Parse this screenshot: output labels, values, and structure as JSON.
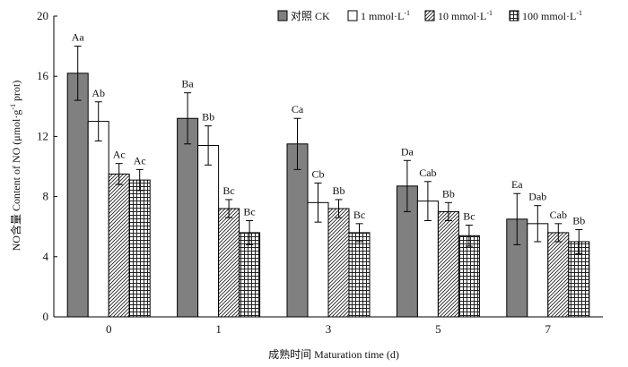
{
  "chart_data": {
    "type": "bar",
    "categories": [
      "0",
      "1",
      "3",
      "5",
      "7"
    ],
    "xlabel": "成熟时间 Maturation time (d)",
    "ylabel_prefix": "NO含量 Content of NO (μmol·g",
    "ylabel_sup": "-1",
    "ylabel_suffix": " prot)",
    "ylim": [
      0,
      20
    ],
    "yticks": [
      0,
      4,
      8,
      12,
      16,
      20
    ],
    "grid": false,
    "legend_position": "top-right",
    "series": [
      {
        "name": "对照 CK",
        "name_sup": "",
        "pattern": "gray",
        "values": [
          16.2,
          13.2,
          11.5,
          8.7,
          6.5
        ],
        "errors": [
          1.8,
          1.7,
          1.7,
          1.7,
          1.7
        ],
        "labels": [
          "Aa",
          "Ba",
          "Ca",
          "Da",
          "Ea"
        ]
      },
      {
        "name": "1 mmol·L",
        "name_sup": "-1",
        "pattern": "white",
        "values": [
          13.0,
          11.4,
          7.6,
          7.7,
          6.2
        ],
        "errors": [
          1.3,
          1.3,
          1.3,
          1.3,
          1.2
        ],
        "labels": [
          "Ab",
          "Bb",
          "Cb",
          "Cab",
          "Dab"
        ]
      },
      {
        "name": "10 mmol·L",
        "name_sup": "-1",
        "pattern": "hatch",
        "values": [
          9.5,
          7.2,
          7.2,
          7.0,
          5.6
        ],
        "errors": [
          0.7,
          0.6,
          0.6,
          0.6,
          0.6
        ],
        "labels": [
          "Ac",
          "Bc",
          "Bb",
          "Bb",
          "Cab"
        ]
      },
      {
        "name": "100 mmol·L",
        "name_sup": "-1",
        "pattern": "grid",
        "values": [
          9.1,
          5.6,
          5.6,
          5.4,
          5.0
        ],
        "errors": [
          0.7,
          0.8,
          0.6,
          0.7,
          0.8
        ],
        "labels": [
          "Ac",
          "Bc",
          "Bc",
          "Bc",
          "Bb"
        ]
      }
    ]
  }
}
